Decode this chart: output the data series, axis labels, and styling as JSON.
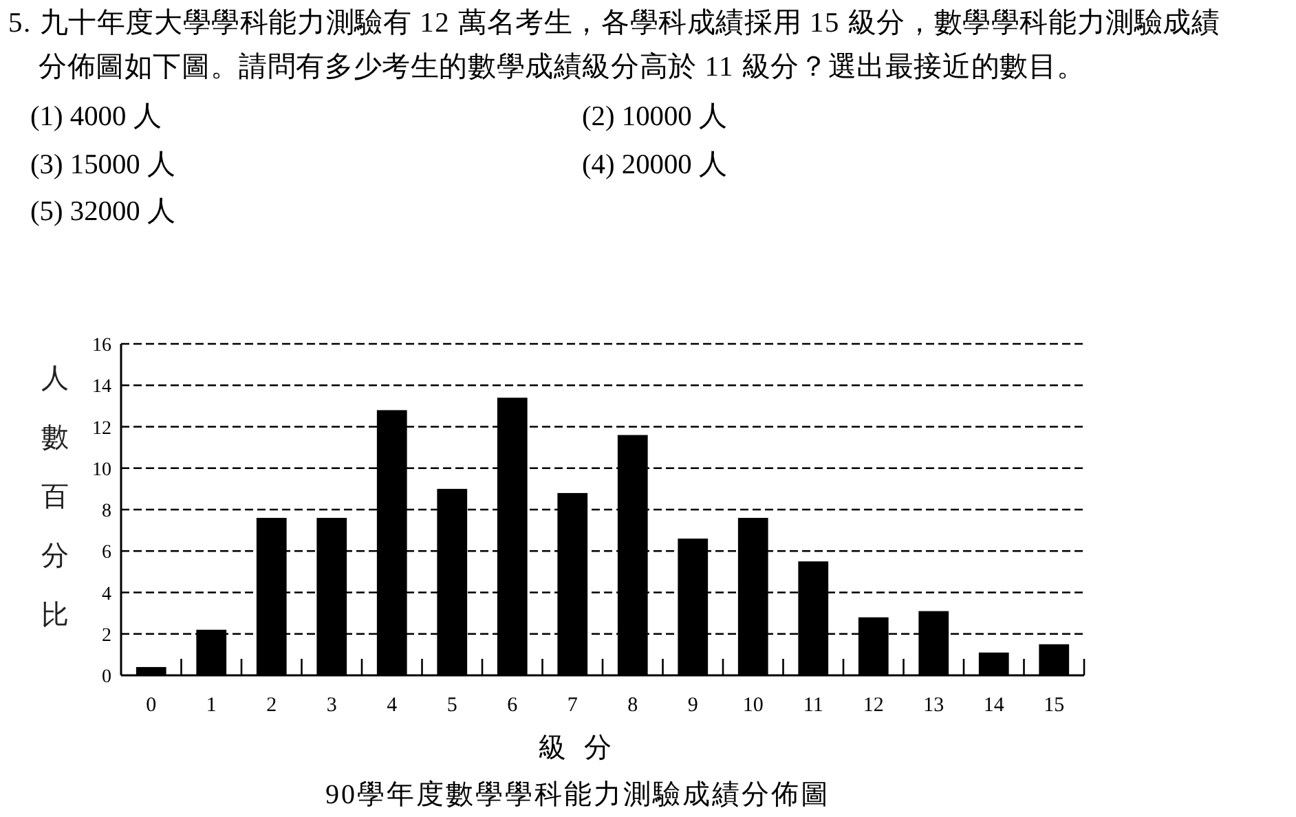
{
  "chart_data": {
    "type": "bar",
    "title": "90學年度數學學科能力測驗成績分佈圖",
    "xlabel": "級 分",
    "ylabel": "人數百分比",
    "annotations": [
      "5. 九十年度大學學科能力測驗有 12 萬名考生，各學科成績採用 15 級分，數學學科能力測驗成績分佈圖如下圖。請問有多少考生的數學成績級分高於 11 級分？選出最接近的數目。",
      "(1) 4000 人",
      "(2) 10000 人",
      "(3) 15000 人",
      "(4) 20000 人",
      "(5) 32000 人"
    ],
    "categories": [
      "0",
      "1",
      "2",
      "3",
      "4",
      "5",
      "6",
      "7",
      "8",
      "9",
      "10",
      "11",
      "12",
      "13",
      "14",
      "15"
    ],
    "values": [
      0.4,
      2.2,
      7.6,
      7.6,
      12.8,
      9.0,
      13.4,
      8.8,
      11.6,
      6.6,
      7.6,
      5.5,
      2.8,
      3.1,
      1.1,
      1.5
    ],
    "color": "#000000",
    "ylim": [
      0,
      16
    ],
    "yticks": [
      0,
      2,
      4,
      6,
      8,
      10,
      12,
      14,
      16
    ],
    "grid": "y"
  }
}
